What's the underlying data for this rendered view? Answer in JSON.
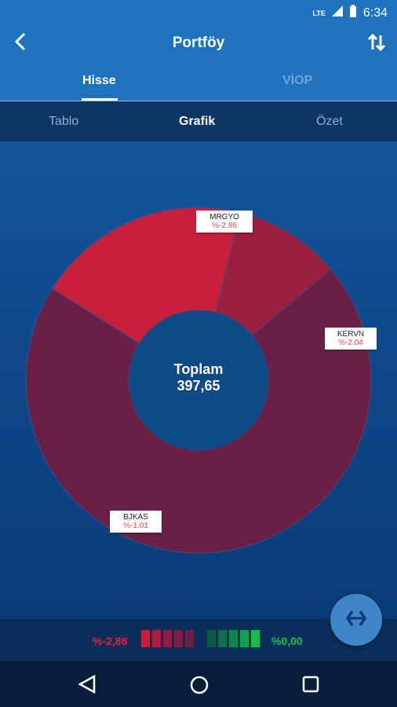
{
  "status_bar": {
    "network": "LTE",
    "time": "6:34"
  },
  "app_bar": {
    "title": "Portföy",
    "back_icon": "back-arrow-icon",
    "sort_icon": "sort-arrows-icon"
  },
  "tabs": [
    {
      "label": "Hisse",
      "active": true
    },
    {
      "label": "VİOP",
      "active": false
    }
  ],
  "sub_tabs": [
    {
      "label": "Tablo"
    },
    {
      "label": "Grafik",
      "selected": true
    },
    {
      "label": "Özet"
    }
  ],
  "donut": {
    "center_label": "Toplam",
    "center_value": "397,65"
  },
  "chart_data": {
    "type": "pie",
    "slices": [
      {
        "name": "MRGYO",
        "change": "%-2.86",
        "color": "#c8203a",
        "share": 0.2
      },
      {
        "name": "KERVN",
        "change": "%-2.04",
        "color": "#9a1f3f",
        "share": 0.1
      },
      {
        "name": "BJKAS",
        "change": "%-1.01",
        "color": "#6a1f45",
        "share": 0.7
      }
    ]
  },
  "legend": {
    "min_value": "%-2,86",
    "max_value": "%0,00",
    "min_color": "#e0243f",
    "max_color": "#19c04a",
    "red_scale": [
      "#c8203a",
      "#a81f40",
      "#8e1f43",
      "#7a1f45",
      "#662047"
    ],
    "green_scale": [
      "#0d5a45",
      "#0f6f48",
      "#11864b",
      "#13a04d",
      "#16bb50"
    ]
  },
  "fab": {
    "icon": "swap-icon"
  },
  "nav_bar": {
    "back": "nav-back-icon",
    "home": "nav-home-icon",
    "recents": "nav-recents-icon"
  }
}
